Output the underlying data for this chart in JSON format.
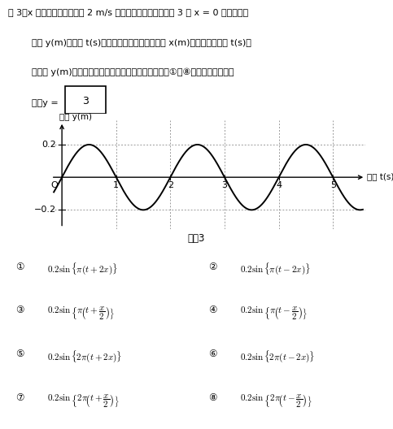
{
  "answer": "3",
  "amplitude": 0.2,
  "period": 2.0,
  "xlim": [
    -0.2,
    5.6
  ],
  "ylim": [
    -0.32,
    0.35
  ],
  "xticks": [
    0,
    1,
    2,
    3,
    4,
    5
  ],
  "yticks": [
    -0.2,
    0.2
  ],
  "background_color": "#ffffff",
  "curve_color": "#000000",
  "grid_color": "#999999",
  "text_color": "#000000"
}
